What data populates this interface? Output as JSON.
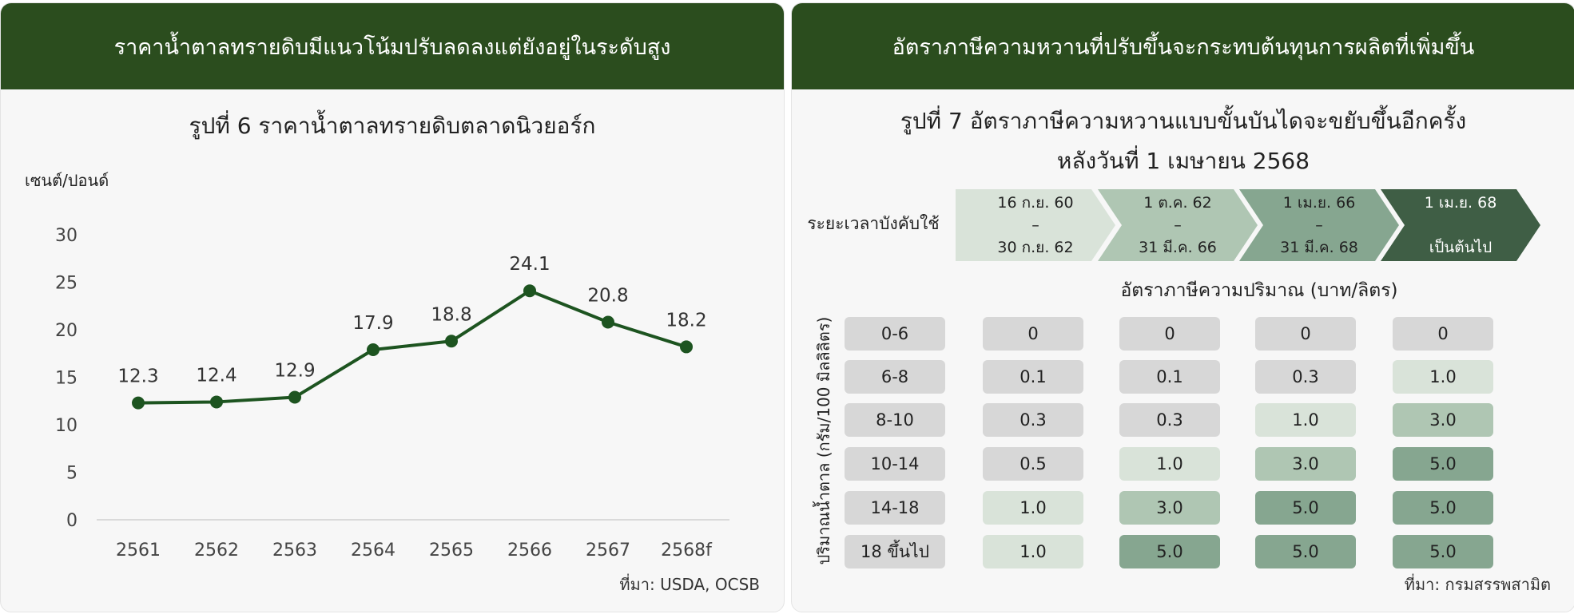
{
  "left": {
    "header": "ราคาน้ำตาลทรายดิบมีแนวโน้มปรับลดลงแต่ยังอยู่ในระดับสูง",
    "figure_title": "รูปที่ 6  ราคาน้ำตาลทรายดิบตลาดนิวยอร์ก",
    "source": "ที่มา: USDA, OCSB"
  },
  "right": {
    "header": "อัตราภาษีความหวานที่ปรับขึ้นจะกระทบต้นทุนการผลิตที่เพิ่มขึ้น",
    "figure_title_line1": "รูปที่ 7 อัตราภาษีความหวานแบบขั้นบันไดจะขยับขึ้นอีกครั้ง",
    "figure_title_line2": "หลังวันที่ 1 เมษายน 2568",
    "period_label": "ระยะเวลาบังคับใช้",
    "periods": [
      {
        "from": "16 ก.ย. 60",
        "dash": "–",
        "to": "30 ก.ย. 62"
      },
      {
        "from": "1 ต.ค. 62",
        "dash": "–",
        "to": "31 มี.ค. 66"
      },
      {
        "from": "1 เม.ย. 66",
        "dash": "–",
        "to": "31 มี.ค. 68"
      },
      {
        "from": "1 เม.ย. 68",
        "dash": "",
        "to": "เป็นต้นไป"
      }
    ],
    "period_colors": [
      "#d9e3d9",
      "#afc6b3",
      "#86a690",
      "#3f5e45"
    ],
    "rate_header": "อัตราภาษีความปริมาณ (บาท/ลิตร)",
    "row_axis_label": "ปริมาณน้ำตาล (กรัม/100 มิลลิลิตร)",
    "rows": [
      {
        "range": "0-6",
        "rates": [
          "0",
          "0",
          "0",
          "0"
        ]
      },
      {
        "range": "6-8",
        "rates": [
          "0.1",
          "0.1",
          "0.3",
          "1.0"
        ]
      },
      {
        "range": "8-10",
        "rates": [
          "0.3",
          "0.3",
          "1.0",
          "3.0"
        ]
      },
      {
        "range": "10-14",
        "rates": [
          "0.5",
          "1.0",
          "3.0",
          "5.0"
        ]
      },
      {
        "range": "14-18",
        "rates": [
          "1.0",
          "3.0",
          "5.0",
          "5.0"
        ]
      },
      {
        "range": "18 ขึ้นไป",
        "rates": [
          "1.0",
          "5.0",
          "5.0",
          "5.0"
        ]
      }
    ],
    "source": "ที่มา: กรมสรรพสามิต"
  },
  "chart_data": {
    "type": "line",
    "title": "รูปที่ 6  ราคาน้ำตาลทรายดิบตลาดนิวยอร์ก",
    "ylabel": "เซนต์/ปอนด์",
    "xlabel": "",
    "categories": [
      "2561",
      "2562",
      "2563",
      "2564",
      "2565",
      "2566",
      "2567",
      "2568f"
    ],
    "values": [
      12.3,
      12.4,
      12.9,
      17.9,
      18.8,
      24.1,
      20.8,
      18.2
    ],
    "ylim": [
      0,
      30
    ],
    "yticks": [
      0,
      5,
      10,
      15,
      20,
      25,
      30
    ],
    "grid": false,
    "line_color": "#1d5420"
  }
}
